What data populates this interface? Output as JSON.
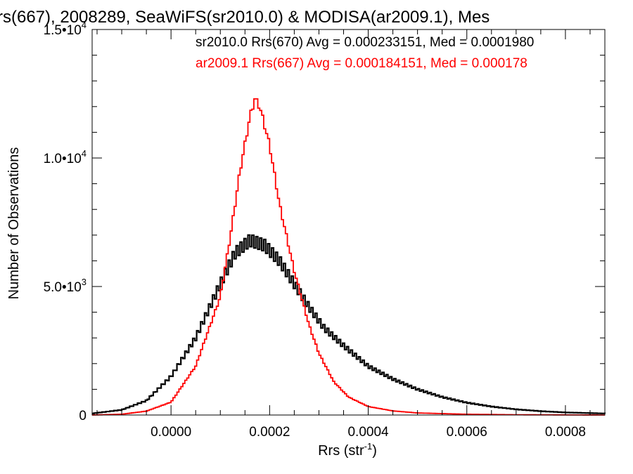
{
  "chart_data": {
    "type": "line",
    "title": "rs(667), 2008289, SeaWiFS(sr2010.0) & MODISA(ar2009.1), Mes",
    "xlabel": "Rrs (str",
    "xlabel_sup": "-1",
    "xlabel_end": ")",
    "ylabel": "Number of Observations",
    "xlim": [
      -0.00016,
      0.00088
    ],
    "ylim": [
      0,
      15000
    ],
    "x_ticks": [
      {
        "value": 0.0,
        "label": "0.0000"
      },
      {
        "value": 0.0002,
        "label": "0.0002"
      },
      {
        "value": 0.0004,
        "label": "0.0004"
      },
      {
        "value": 0.0006,
        "label": "0.0006"
      },
      {
        "value": 0.0008,
        "label": "0.0008"
      }
    ],
    "y_ticks": [
      {
        "value": 0,
        "label": "0",
        "exp": ""
      },
      {
        "value": 5000,
        "label": "5.0•10",
        "exp": "3"
      },
      {
        "value": 10000,
        "label": "1.0•10",
        "exp": "4"
      },
      {
        "value": 15000,
        "label": "1.5•10",
        "exp": "4"
      }
    ],
    "series": [
      {
        "name": "sr2010.0",
        "legend": "sr2010.0 Rrs(670) Avg = 0.000233151, Med = 0.0001980",
        "color": "#000000",
        "points": [
          [
            -0.00016,
            60
          ],
          [
            -0.0001,
            200
          ],
          [
            -5e-05,
            560
          ],
          [
            0.0,
            1500
          ],
          [
            5e-05,
            3000
          ],
          [
            0.0001,
            5100
          ],
          [
            0.00013,
            6300
          ],
          [
            0.00016,
            6800
          ],
          [
            0.00019,
            6600
          ],
          [
            0.00022,
            6000
          ],
          [
            0.00025,
            5100
          ],
          [
            0.00028,
            4200
          ],
          [
            0.00031,
            3400
          ],
          [
            0.00035,
            2700
          ],
          [
            0.0004,
            1900
          ],
          [
            0.00045,
            1400
          ],
          [
            0.0005,
            1000
          ],
          [
            0.00055,
            700
          ],
          [
            0.0006,
            480
          ],
          [
            0.00065,
            330
          ],
          [
            0.0007,
            220
          ],
          [
            0.00075,
            150
          ],
          [
            0.0008,
            100
          ],
          [
            0.00088,
            60
          ]
        ]
      },
      {
        "name": "ar2009.1",
        "legend": "ar2009.1 Rrs(667) Avg = 0.000184151, Med = 0.000178",
        "color": "#ff0000",
        "points": [
          [
            -0.00016,
            0
          ],
          [
            -0.0001,
            30
          ],
          [
            -5e-05,
            150
          ],
          [
            0.0,
            500
          ],
          [
            5e-05,
            1900
          ],
          [
            0.0001,
            4600
          ],
          [
            0.00012,
            6900
          ],
          [
            0.00014,
            9500
          ],
          [
            0.00016,
            11600
          ],
          [
            0.00017,
            12300
          ],
          [
            0.00018,
            12000
          ],
          [
            0.0002,
            10500
          ],
          [
            0.00022,
            8200
          ],
          [
            0.00025,
            5600
          ],
          [
            0.00028,
            3500
          ],
          [
            0.0003,
            2400
          ],
          [
            0.00033,
            1300
          ],
          [
            0.00036,
            700
          ],
          [
            0.0004,
            330
          ],
          [
            0.00045,
            160
          ],
          [
            0.0005,
            80
          ],
          [
            0.0006,
            30
          ],
          [
            0.0007,
            10
          ],
          [
            0.00088,
            0
          ]
        ]
      }
    ]
  }
}
